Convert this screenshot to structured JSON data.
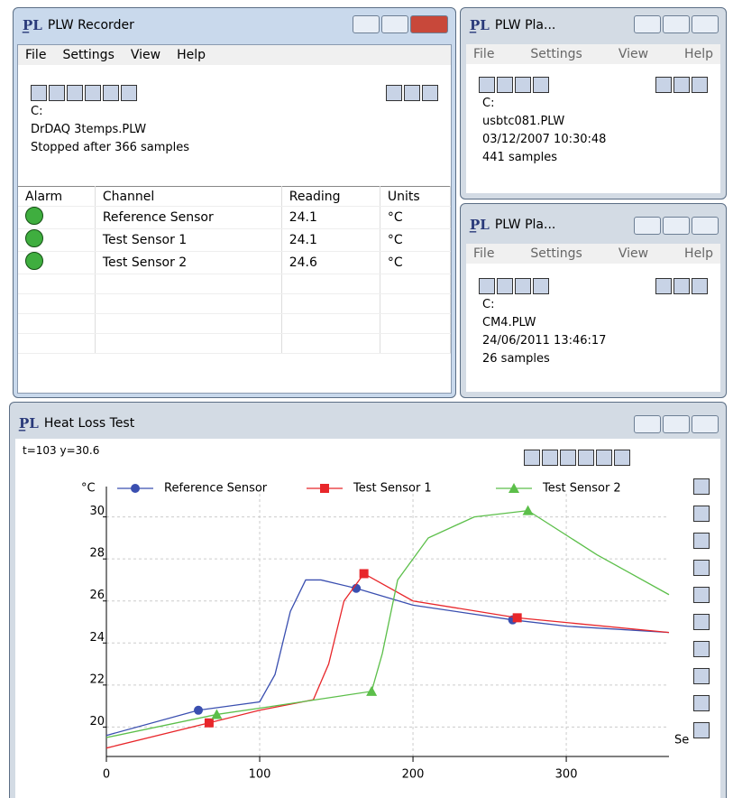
{
  "recorder": {
    "title": "PLW Recorder",
    "menu": [
      "File",
      "Settings",
      "View",
      "Help"
    ],
    "info": [
      "C:",
      "DrDAQ 3temps.PLW",
      "Stopped after 366 samples"
    ],
    "table": {
      "headers": [
        "Alarm",
        "Channel",
        "Reading",
        "Units"
      ],
      "rows": [
        [
          "Reference Sensor",
          "24.1",
          "°C"
        ],
        [
          "Test Sensor 1",
          "24.1",
          "°C"
        ],
        [
          "Test Sensor 2",
          "24.6",
          "°C"
        ]
      ]
    }
  },
  "player1": {
    "title": "PLW Pla...",
    "menu": [
      "File",
      "Settings",
      "View",
      "Help"
    ],
    "info": [
      "C:",
      "usbtc081.PLW",
      "03/12/2007 10:30:48",
      "441 samples"
    ]
  },
  "player2": {
    "title": "PLW Pla...",
    "menu": [
      "File",
      "Settings",
      "View",
      "Help"
    ],
    "info": [
      "C:",
      "CM4.PLW",
      "24/06/2011 13:46:17",
      "26 samples"
    ]
  },
  "graph": {
    "title": "Heat Loss Test",
    "status": "t=103 y=30.6",
    "chart_data": {
      "type": "line",
      "y_label": "°C",
      "x_label": "Se",
      "xlim": [
        0,
        367
      ],
      "ylim": [
        18.6,
        31.1
      ],
      "xticks": [
        0,
        100,
        200,
        300
      ],
      "yticks": [
        20,
        22,
        24,
        26,
        28,
        30
      ],
      "grid": true,
      "series": [
        {
          "name": "Reference Sensor",
          "color": "#3a4fb0",
          "marker": "circle",
          "x": [
            0,
            60,
            100,
            110,
            120,
            130,
            140,
            163,
            200,
            265,
            300,
            367
          ],
          "values": [
            19.6,
            20.8,
            21.2,
            22.5,
            25.5,
            27.0,
            27.0,
            26.6,
            25.8,
            25.1,
            24.8,
            24.5
          ],
          "marker_x": [
            60,
            163,
            265
          ],
          "marker_values": [
            20.8,
            26.6,
            25.1
          ]
        },
        {
          "name": "Test Sensor 1",
          "color": "#e8262a",
          "marker": "square",
          "x": [
            0,
            67,
            100,
            135,
            145,
            155,
            168,
            200,
            268,
            367
          ],
          "values": [
            19.0,
            20.2,
            20.8,
            21.3,
            23.0,
            26.0,
            27.3,
            26.0,
            25.2,
            24.5
          ],
          "marker_x": [
            67,
            168,
            268
          ],
          "marker_values": [
            20.2,
            27.3,
            25.2
          ]
        },
        {
          "name": "Test Sensor 2",
          "color": "#5cbf4a",
          "marker": "triangle",
          "x": [
            0,
            72,
            100,
            173,
            180,
            190,
            210,
            240,
            275,
            320,
            367
          ],
          "values": [
            19.5,
            20.6,
            20.9,
            21.7,
            23.5,
            27.0,
            29.0,
            30.0,
            30.3,
            28.2,
            26.3
          ],
          "marker_x": [
            72,
            173,
            275
          ],
          "marker_values": [
            20.6,
            21.7,
            30.3
          ]
        }
      ]
    }
  }
}
